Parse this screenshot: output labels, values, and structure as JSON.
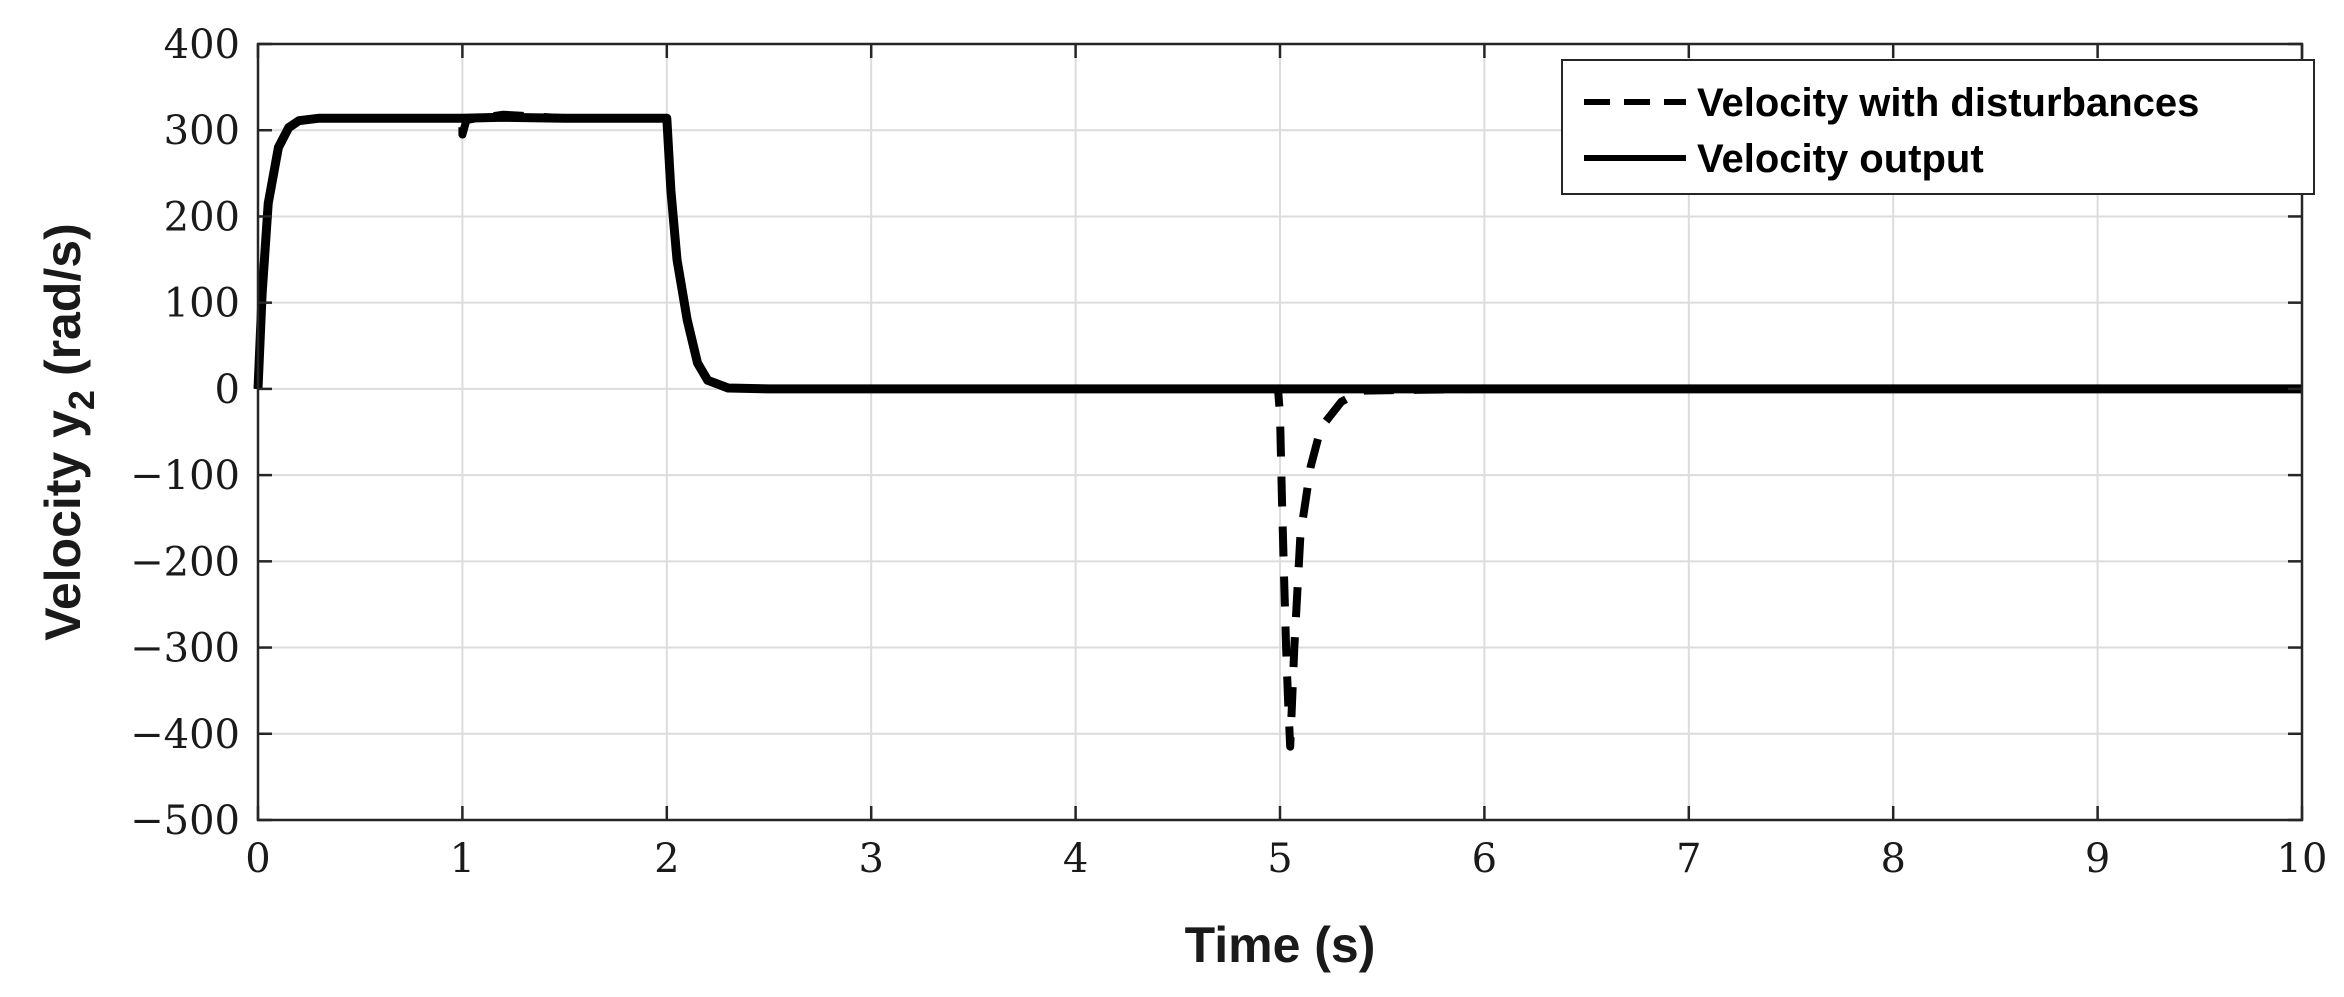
{
  "chart_data": {
    "type": "line",
    "title": "",
    "xlabel": "Time (s)",
    "ylabel_main": "Velocity y",
    "ylabel_sub": "2",
    "ylabel_unit": "(rad/s)",
    "xlim": [
      0,
      10
    ],
    "ylim": [
      -500,
      400
    ],
    "xticks": [
      0,
      1,
      2,
      3,
      4,
      5,
      6,
      7,
      8,
      9,
      10
    ],
    "xtick_labels": [
      "0",
      "1",
      "2",
      "3",
      "4",
      "5",
      "6",
      "7",
      "8",
      "9",
      "10"
    ],
    "yticks": [
      400,
      300,
      200,
      100,
      0,
      -100,
      -200,
      -300,
      -400,
      -500
    ],
    "ytick_labels": [
      "400",
      "300",
      "200",
      "100",
      "0",
      "−100",
      "−200",
      "−300",
      "−400",
      "−500"
    ],
    "grid": true,
    "legend_position": "top-right",
    "series": [
      {
        "name": "Velocity with disturbances",
        "style": "dashed",
        "color": "#000000",
        "x": [
          0,
          0.02,
          0.05,
          0.1,
          0.15,
          0.2,
          0.3,
          0.5,
          1.0,
          1.0,
          1.02,
          1.2,
          1.5,
          2.0,
          2.02,
          2.05,
          2.1,
          2.15,
          2.2,
          2.3,
          2.5,
          3.0,
          4.0,
          4.99,
          5.0,
          5.01,
          5.02,
          5.03,
          5.04,
          5.05,
          5.07,
          5.1,
          5.15,
          5.2,
          5.3,
          5.4,
          6.0,
          10.0
        ],
        "y": [
          0,
          110,
          215,
          280,
          303,
          311,
          314,
          314,
          314,
          295,
          312,
          318,
          314,
          314,
          230,
          150,
          80,
          30,
          10,
          1,
          0,
          0,
          0,
          0,
          -30,
          -130,
          -220,
          -300,
          -365,
          -415,
          -300,
          -170,
          -90,
          -45,
          -15,
          -2,
          0,
          0
        ]
      },
      {
        "name": "Velocity output",
        "style": "solid",
        "color": "#000000",
        "x": [
          0,
          0.02,
          0.05,
          0.1,
          0.15,
          0.2,
          0.3,
          0.5,
          1.0,
          1.2,
          1.5,
          2.0,
          2.02,
          2.05,
          2.1,
          2.15,
          2.2,
          2.3,
          2.5,
          3.0,
          10.0
        ],
        "y": [
          0,
          110,
          215,
          280,
          303,
          311,
          314,
          314,
          314,
          315,
          314,
          314,
          230,
          150,
          80,
          30,
          10,
          1,
          0,
          0,
          0
        ]
      }
    ]
  }
}
